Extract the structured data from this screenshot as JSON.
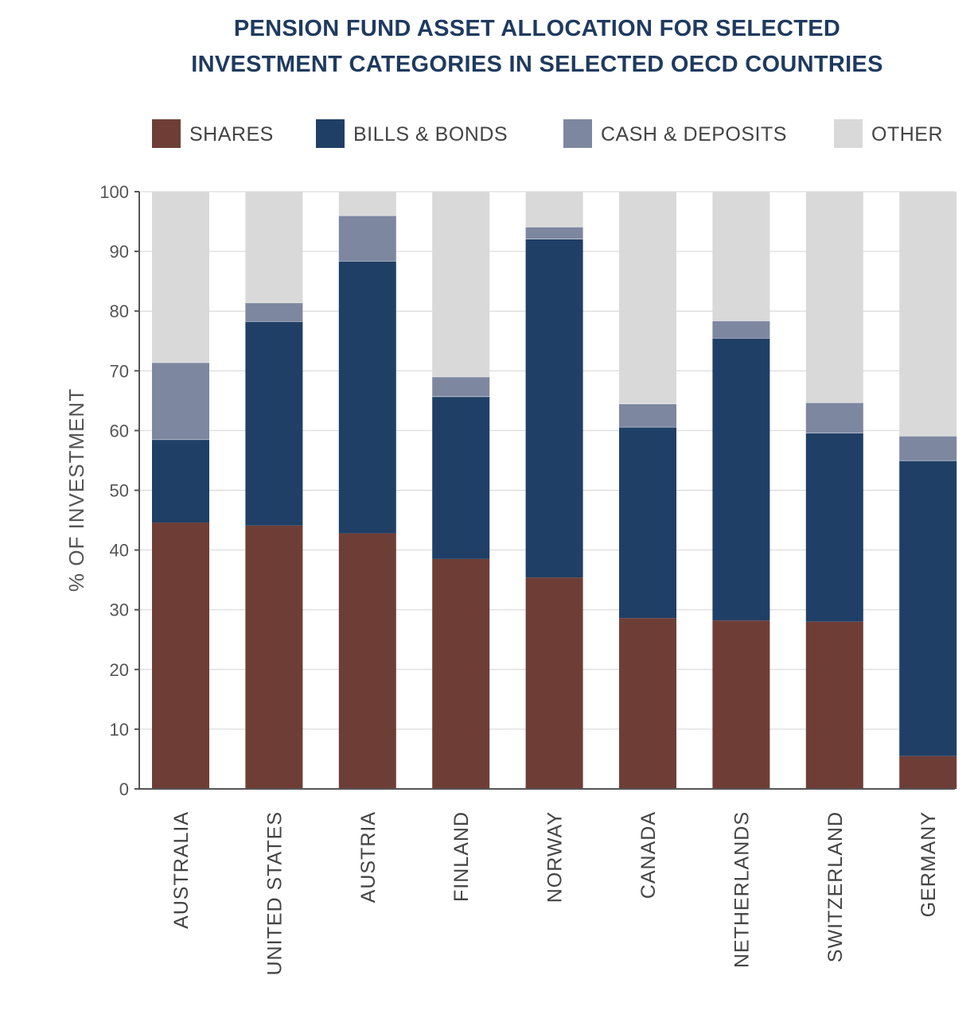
{
  "chart_data": {
    "type": "bar",
    "stacked": true,
    "title_lines": [
      "PENSION FUND ASSET ALLOCATION FOR SELECTED",
      "INVESTMENT CATEGORIES IN SELECTED OECD COUNTRIES"
    ],
    "ylabel": "% OF INVESTMENT",
    "xlabel": "",
    "ylim": [
      0,
      100
    ],
    "yticks": [
      0,
      10,
      20,
      30,
      40,
      50,
      60,
      70,
      80,
      90,
      100
    ],
    "grid": true,
    "legend_position": "top",
    "categories": [
      "AUSTRALIA",
      "UNITED STATES",
      "AUSTRIA",
      "FINLAND",
      "NORWAY",
      "CANADA",
      "NETHERLANDS",
      "SWITZERLAND",
      "GERMANY"
    ],
    "series": [
      {
        "name": "SHARES",
        "color": "#6e3e36",
        "values": [
          44.6,
          44.1,
          42.8,
          38.5,
          35.4,
          28.6,
          28.2,
          28.0,
          5.5
        ]
      },
      {
        "name": "BILLS & BONDS",
        "color": "#203f66",
        "values": [
          13.9,
          34.2,
          45.6,
          27.2,
          56.7,
          32.0,
          47.3,
          31.6,
          49.5
        ]
      },
      {
        "name": "CASH & DEPOSITS",
        "color": "#7e87a0",
        "values": [
          12.9,
          3.1,
          7.6,
          3.3,
          2.0,
          3.9,
          2.9,
          5.1,
          4.1
        ]
      },
      {
        "name": "OTHER",
        "color": "#d9d9d9",
        "values": [
          28.6,
          18.6,
          4.0,
          31.0,
          5.9,
          35.5,
          21.6,
          35.3,
          40.9
        ]
      }
    ]
  }
}
